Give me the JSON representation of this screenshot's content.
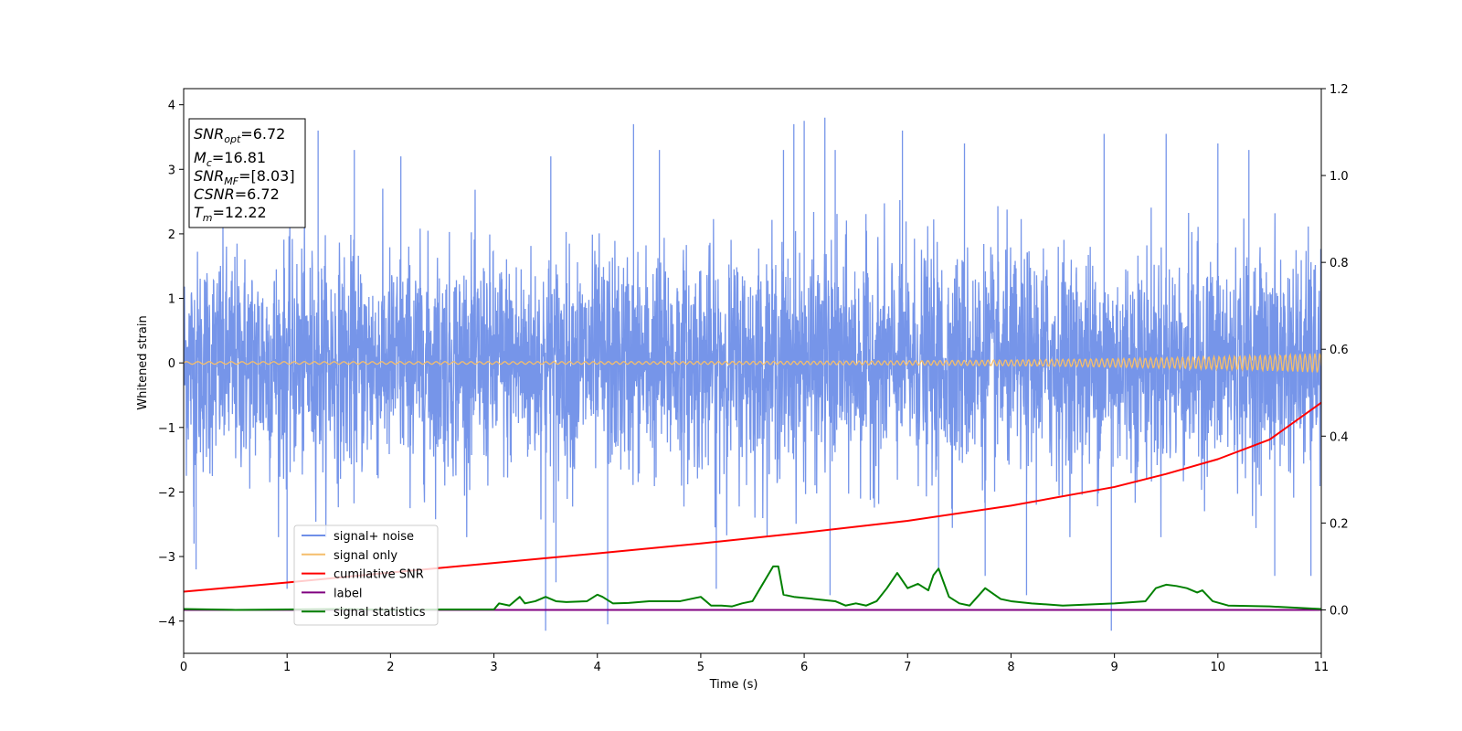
{
  "chart_data": {
    "type": "line",
    "xlabel": "Time (s)",
    "ylabel": "Whitened strain",
    "xlim": [
      0,
      11
    ],
    "ylim": [
      -4.5,
      4.25
    ],
    "y2lim": [
      -0.1,
      1.2
    ],
    "x_ticks": [
      0,
      1,
      2,
      3,
      4,
      5,
      6,
      7,
      8,
      9,
      10,
      11
    ],
    "y_ticks": [
      -4,
      -3,
      -2,
      -1,
      0,
      1,
      2,
      3,
      4
    ],
    "y2_ticks": [
      0.0,
      0.2,
      0.4,
      0.6,
      0.8,
      1.0,
      1.2
    ],
    "x_tick_labels": [
      "0",
      "1",
      "2",
      "3",
      "4",
      "5",
      "6",
      "7",
      "8",
      "9",
      "10",
      "11"
    ],
    "y_tick_labels": [
      "−4",
      "−3",
      "−2",
      "−1",
      "0",
      "1",
      "2",
      "3",
      "4"
    ],
    "y2_tick_labels": [
      "0.0",
      "0.2",
      "0.4",
      "0.6",
      "0.8",
      "1.0",
      "1.2"
    ],
    "grid": false,
    "legend_position": "lower-left",
    "series": [
      {
        "name": "signal+ noise",
        "axis": "left",
        "color": "#6f8fe8",
        "description": "dense noise, amplitude ~±2.5, occasional spikes to ±4",
        "spikes": [
          [
            0.1,
            -2.8
          ],
          [
            0.12,
            -3.2
          ],
          [
            1.0,
            -3.5
          ],
          [
            1.3,
            3.6
          ],
          [
            1.65,
            3.3
          ],
          [
            2.1,
            3.2
          ],
          [
            3.5,
            -4.15
          ],
          [
            3.55,
            3.2
          ],
          [
            3.6,
            -3.4
          ],
          [
            4.1,
            -4.05
          ],
          [
            4.35,
            3.7
          ],
          [
            4.6,
            3.3
          ],
          [
            5.15,
            -3.5
          ],
          [
            5.8,
            3.3
          ],
          [
            5.9,
            3.7
          ],
          [
            6.0,
            3.75
          ],
          [
            6.2,
            3.8
          ],
          [
            6.25,
            -3.6
          ],
          [
            6.3,
            3.3
          ],
          [
            6.95,
            3.6
          ],
          [
            7.3,
            -3.2
          ],
          [
            7.55,
            3.4
          ],
          [
            7.75,
            -3.3
          ],
          [
            8.15,
            -3.6
          ],
          [
            8.9,
            3.55
          ],
          [
            8.97,
            -4.15
          ],
          [
            9.5,
            3.55
          ],
          [
            10.0,
            3.4
          ],
          [
            10.3,
            3.3
          ],
          [
            10.55,
            -3.3
          ],
          [
            10.9,
            -3.3
          ]
        ]
      },
      {
        "name": "signal only",
        "axis": "left",
        "color": "#f5be6b",
        "description": "chirp oscillation, amplitude grows from ~0.02 to ~0.15 near 11 s"
      },
      {
        "name": "cumilative SNR",
        "axis": "right",
        "color": "#ff0000",
        "x": [
          0,
          1,
          2,
          3,
          4,
          5,
          6,
          7,
          8,
          9,
          9.5,
          10,
          10.5,
          11
        ],
        "values": [
          0.042,
          0.063,
          0.086,
          0.108,
          0.13,
          0.153,
          0.178,
          0.205,
          0.24,
          0.283,
          0.313,
          0.347,
          0.392,
          0.477
        ]
      },
      {
        "name": "label",
        "axis": "right",
        "color": "#800080",
        "x": [
          0,
          11
        ],
        "values": [
          0.0,
          0.0
        ]
      },
      {
        "name": "signal statistics",
        "axis": "right",
        "color": "#008000",
        "x": [
          0,
          0.5,
          1,
          1.5,
          2,
          2.5,
          3,
          3.05,
          3.15,
          3.25,
          3.3,
          3.4,
          3.5,
          3.6,
          3.7,
          3.9,
          4.0,
          4.05,
          4.15,
          4.3,
          4.5,
          4.6,
          4.8,
          5.0,
          5.1,
          5.2,
          5.3,
          5.4,
          5.5,
          5.6,
          5.7,
          5.75,
          5.8,
          5.9,
          6.1,
          6.3,
          6.4,
          6.5,
          6.6,
          6.7,
          6.8,
          6.9,
          7.0,
          7.1,
          7.2,
          7.25,
          7.3,
          7.4,
          7.5,
          7.6,
          7.75,
          7.9,
          8.0,
          8.2,
          8.5,
          9.0,
          9.3,
          9.4,
          9.5,
          9.6,
          9.7,
          9.8,
          9.85,
          9.95,
          10.1,
          10.5,
          11
        ],
        "values": [
          0.002,
          0.0,
          0.001,
          0.002,
          0.0,
          0.001,
          0.001,
          0.015,
          0.01,
          0.03,
          0.015,
          0.02,
          0.03,
          0.02,
          0.018,
          0.02,
          0.035,
          0.03,
          0.015,
          0.016,
          0.02,
          0.02,
          0.02,
          0.03,
          0.01,
          0.01,
          0.008,
          0.015,
          0.02,
          0.06,
          0.1,
          0.1,
          0.035,
          0.03,
          0.025,
          0.02,
          0.01,
          0.015,
          0.01,
          0.02,
          0.05,
          0.085,
          0.05,
          0.06,
          0.045,
          0.08,
          0.095,
          0.03,
          0.015,
          0.01,
          0.05,
          0.025,
          0.02,
          0.015,
          0.01,
          0.015,
          0.02,
          0.05,
          0.058,
          0.055,
          0.05,
          0.04,
          0.045,
          0.02,
          0.01,
          0.008,
          0.002
        ]
      }
    ],
    "annotation_box": {
      "lines": [
        {
          "base": "SNR",
          "sub": "opt",
          "rest": "=6.72"
        },
        {
          "base": "M",
          "sub": "c",
          "rest": "=16.81"
        },
        {
          "base": "SNR",
          "sub": "MF",
          "rest": "=[8.03]"
        },
        {
          "base": "CSNR",
          "sub": "",
          "rest": "=6.72"
        },
        {
          "base": "T",
          "sub": "m",
          "rest": "=12.22"
        }
      ]
    }
  }
}
